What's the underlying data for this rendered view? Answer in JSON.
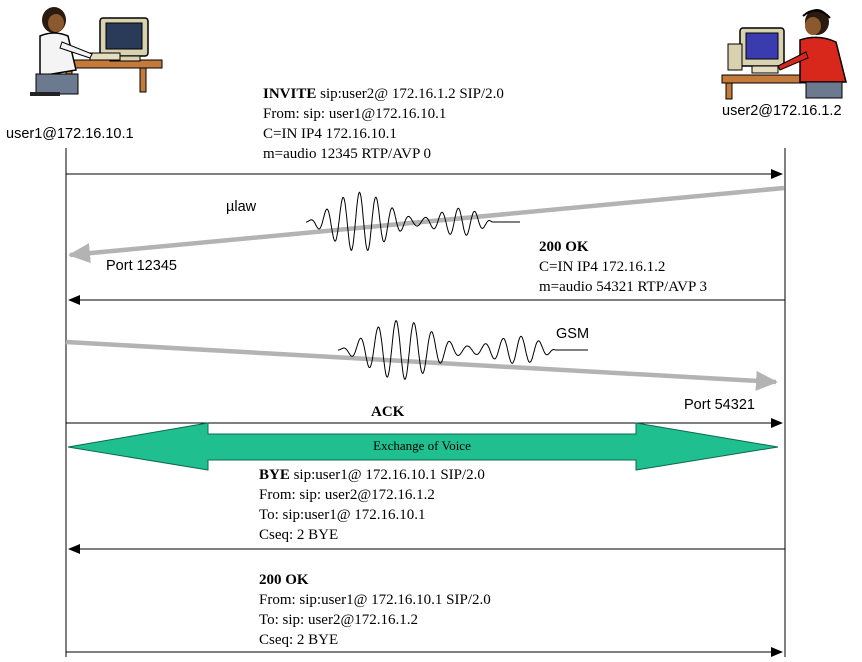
{
  "endpoints": {
    "left": {
      "address": "user1@172.16.10.1",
      "icon": "woman-at-computer-icon"
    },
    "right": {
      "address": "user2@172.16.1.2",
      "icon": "operator-with-headset-icon"
    }
  },
  "messages": {
    "invite": {
      "method": "INVITE",
      "request_line_rest": " sip:user2@ 172.16.1.2 SIP/2.0",
      "lines": [
        "From: sip: user1@172.16.10.1",
        "C=IN IP4 172.16.10.1",
        "m=audio 12345 RTP/AVP 0"
      ]
    },
    "ok_invite": {
      "method": "200 OK",
      "lines": [
        "C=IN IP4 172.16.1.2",
        "m=audio 54321 RTP/AVP 3"
      ]
    },
    "ack": {
      "method": "ACK"
    },
    "bye": {
      "method": "BYE",
      "request_line_rest": " sip:user1@ 172.16.10.1 SIP/2.0",
      "lines": [
        "From: sip: user2@172.16.1.2",
        "To: sip:user1@ 172.16.10.1",
        "Cseq: 2 BYE"
      ]
    },
    "ok_bye": {
      "method": "200 OK",
      "lines": [
        "From: sip:user1@ 172.16.10.1 SIP/2.0",
        "To: sip: user2@172.16.1.2",
        "Cseq: 2 BYE"
      ]
    }
  },
  "media": {
    "ulaw": {
      "codec": "µlaw",
      "port_label": "Port 12345"
    },
    "gsm": {
      "codec": "GSM",
      "port_label": "Port 54321"
    },
    "exchange_label": "Exchange of Voice"
  },
  "colors": {
    "line": "#000000",
    "media_arrow": "#b3b3b3",
    "exchange_fill": "#1fbf8f"
  }
}
